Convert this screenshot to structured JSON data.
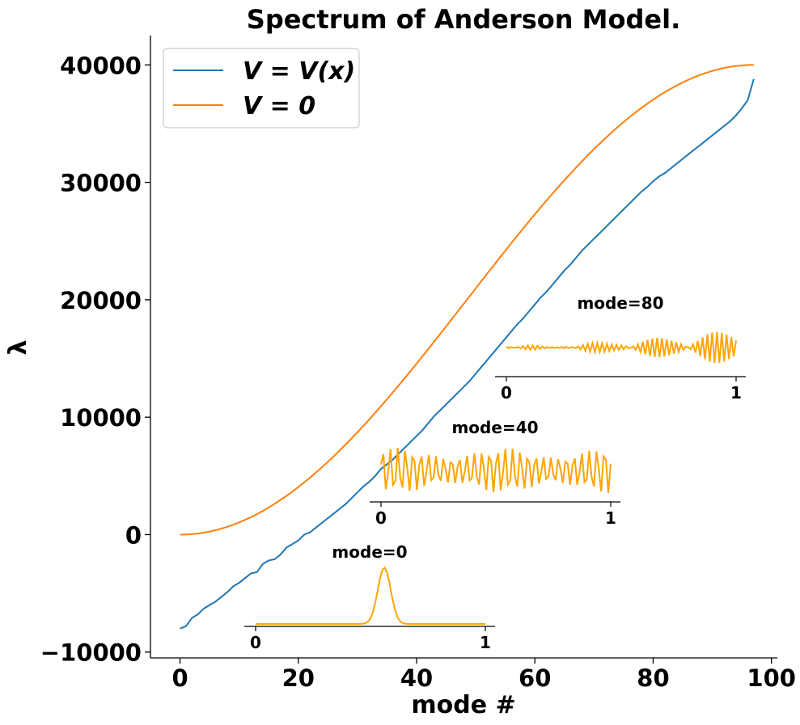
{
  "chart_data": {
    "type": "line",
    "title": "Spectrum of Anderson Model.",
    "xlabel": "mode #",
    "ylabel": "λ",
    "xlim": [
      -5,
      101
    ],
    "ylim": [
      -10500,
      42500
    ],
    "xticks": [
      0,
      20,
      40,
      60,
      80,
      100
    ],
    "xtick_labels": [
      "0",
      "20",
      "40",
      "60",
      "80",
      "100"
    ],
    "yticks": [
      -10000,
      0,
      10000,
      20000,
      30000,
      40000
    ],
    "ytick_labels": [
      "−10000",
      "0",
      "10000",
      "20000",
      "30000",
      "40000"
    ],
    "legend_position": "upper-left",
    "series": [
      {
        "name": "V = V(x)",
        "color": "#1f77b4",
        "x": [
          0,
          1,
          2,
          3,
          4,
          5,
          6,
          7,
          8,
          9,
          10,
          11,
          12,
          13,
          14,
          15,
          16,
          17,
          18,
          19,
          20,
          21,
          22,
          23,
          24,
          25,
          26,
          27,
          28,
          29,
          30,
          31,
          32,
          33,
          34,
          35,
          36,
          37,
          38,
          39,
          40,
          41,
          42,
          43,
          44,
          45,
          46,
          47,
          48,
          49,
          50,
          51,
          52,
          53,
          54,
          55,
          56,
          57,
          58,
          59,
          60,
          61,
          62,
          63,
          64,
          65,
          66,
          67,
          68,
          69,
          70,
          71,
          72,
          73,
          74,
          75,
          76,
          77,
          78,
          79,
          80,
          81,
          82,
          83,
          84,
          85,
          86,
          87,
          88,
          89,
          90,
          91,
          92,
          93,
          94,
          95,
          96,
          97
        ],
        "values": [
          -8000,
          -7800,
          -7100,
          -6800,
          -6300,
          -6000,
          -5700,
          -5300,
          -4900,
          -4400,
          -4100,
          -3700,
          -3300,
          -3200,
          -2500,
          -2200,
          -2100,
          -1700,
          -1100,
          -800,
          -500,
          0,
          200,
          600,
          1000,
          1400,
          1800,
          2200,
          2600,
          3100,
          3600,
          4100,
          4500,
          5000,
          5600,
          6000,
          6400,
          6900,
          7400,
          7900,
          8400,
          8900,
          9500,
          10100,
          10600,
          11100,
          11600,
          12100,
          12600,
          13100,
          13700,
          14300,
          14900,
          15500,
          16100,
          16700,
          17300,
          17900,
          18400,
          19000,
          19600,
          20200,
          20700,
          21300,
          21900,
          22500,
          23000,
          23600,
          24200,
          24700,
          25200,
          25700,
          26200,
          26700,
          27200,
          27700,
          28200,
          28700,
          29200,
          29600,
          30100,
          30500,
          30800,
          31200,
          31600,
          32000,
          32400,
          32800,
          33200,
          33600,
          34000,
          34400,
          34800,
          35200,
          35700,
          36300,
          37000,
          38800
        ]
      },
      {
        "name": "V = 0",
        "color": "#ff7f0e",
        "formula": "40000*sin^2(pi*n/194)",
        "x_range": [
          0,
          97
        ]
      }
    ],
    "insets": [
      {
        "title": "mode=0",
        "color": "#ffa500",
        "xticks": [
          "0",
          "1"
        ],
        "shape": "localized-peak",
        "peak_x": 0.56,
        "peak_width": 0.028
      },
      {
        "title": "mode=40",
        "color": "#ffa500",
        "xticks": [
          "0",
          "1"
        ],
        "shape": "uniform-oscillation",
        "cycles": 30
      },
      {
        "title": "mode=80",
        "color": "#ffa500",
        "xticks": [
          "0",
          "1"
        ],
        "shape": "growing-oscillation",
        "cycles": 46
      }
    ]
  },
  "legend": {
    "entries": [
      {
        "label": "V = V(x)",
        "color": "#1f77b4"
      },
      {
        "label": "V = 0",
        "color": "#ff7f0e"
      }
    ]
  }
}
